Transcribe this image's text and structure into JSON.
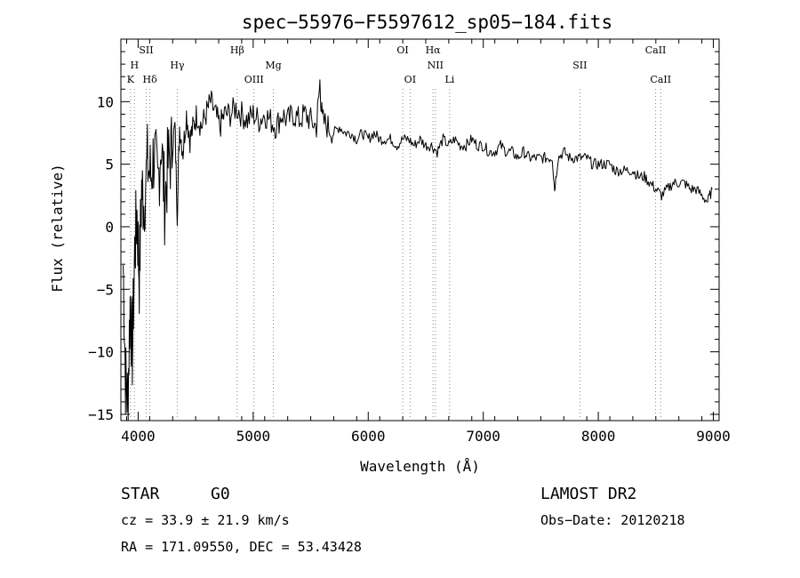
{
  "chart_data": {
    "type": "line",
    "title": "spec−55976−F5597612_sp05−184.fits",
    "xlabel": "Wavelength (Å)",
    "ylabel": "Flux (relative)",
    "xlim": [
      3850,
      9050
    ],
    "ylim": [
      -15.5,
      15
    ],
    "x_ticks": [
      4000,
      5000,
      6000,
      7000,
      8000,
      9000
    ],
    "x_tick_labels": [
      "4000",
      "5000",
      "6000",
      "7000",
      "8000",
      "9000"
    ],
    "y_ticks": [
      -15,
      -10,
      -5,
      0,
      5,
      10
    ],
    "y_tick_labels": [
      "−15",
      "−10",
      "−5",
      "0",
      "5",
      "10"
    ],
    "grid": false,
    "series": [
      {
        "name": "",
        "x": [
          3870,
          3890,
          3910,
          3930,
          3950,
          3970,
          3990,
          4010,
          4030,
          4050,
          4080,
          4110,
          4140,
          4170,
          4200,
          4230,
          4260,
          4290,
          4320,
          4340,
          4360,
          4390,
          4420,
          4450,
          4480,
          4510,
          4550,
          4590,
          4630,
          4670,
          4710,
          4750,
          4800,
          4850,
          4900,
          4950,
          5000,
          5050,
          5100,
          5150,
          5200,
          5250,
          5300,
          5350,
          5400,
          5450,
          5500,
          5550,
          5580,
          5600,
          5650,
          5700,
          5750,
          5800,
          5850,
          5900,
          5950,
          6000,
          6050,
          6100,
          6150,
          6200,
          6250,
          6300,
          6350,
          6400,
          6450,
          6500,
          6550,
          6600,
          6650,
          6700,
          6750,
          6800,
          6850,
          6900,
          6950,
          7000,
          7050,
          7100,
          7150,
          7200,
          7250,
          7300,
          7350,
          7400,
          7450,
          7500,
          7550,
          7600,
          7620,
          7650,
          7700,
          7750,
          7800,
          7850,
          7900,
          7950,
          8000,
          8050,
          8100,
          8150,
          8200,
          8250,
          8300,
          8350,
          8400,
          8450,
          8500,
          8550,
          8600,
          8650,
          8700,
          8750,
          8800,
          8850,
          8900,
          8950,
          8990
        ],
        "values": [
          -3,
          -12,
          -14,
          -6,
          -10,
          -2,
          1,
          -4,
          3,
          2,
          5,
          4,
          6,
          3,
          7,
          2,
          5,
          6,
          8,
          1,
          8,
          6,
          9,
          7,
          8,
          9,
          8,
          9,
          10,
          9,
          8,
          9,
          9,
          9.5,
          9,
          8.5,
          9,
          8.5,
          9,
          8.5,
          8,
          9,
          8.5,
          9,
          8.5,
          9,
          8.5,
          8,
          11.5,
          8.5,
          8,
          7.5,
          8,
          7.5,
          7.5,
          7,
          7.5,
          7,
          7.5,
          7,
          7,
          7,
          6.5,
          7,
          7,
          6.5,
          7,
          6.5,
          6.5,
          6,
          7,
          6.5,
          7,
          6.5,
          6.5,
          7,
          6.5,
          6.5,
          6,
          6,
          6.5,
          6,
          6,
          5.5,
          6,
          5.5,
          5.5,
          5.5,
          5.5,
          5.5,
          3,
          5.5,
          6,
          5.5,
          5.5,
          5.5,
          5.5,
          5,
          5,
          5,
          5,
          4.5,
          4.5,
          4.5,
          4.5,
          4,
          4,
          3.5,
          3,
          2.5,
          3,
          3.5,
          3.5,
          3.5,
          3,
          3,
          2.5,
          2,
          3
        ]
      }
    ],
    "line_markers": [
      {
        "label": "K",
        "x": 3934
      },
      {
        "label": "H",
        "x": 3968
      },
      {
        "label": "SII",
        "x": 4070
      },
      {
        "label": "Hδ",
        "x": 4102
      },
      {
        "label": "Hγ",
        "x": 4340
      },
      {
        "label": "Hβ",
        "x": 4861
      },
      {
        "label": "OIII",
        "x": 5007
      },
      {
        "label": "Mg",
        "x": 5175
      },
      {
        "label": "OI",
        "x": 6300
      },
      {
        "label": "OI",
        "x": 6364
      },
      {
        "label": "Hα",
        "x": 6563
      },
      {
        "label": "NII",
        "x": 6584
      },
      {
        "label": "Li",
        "x": 6708
      },
      {
        "label": "SII",
        "x": 7840
      },
      {
        "label": "CaII",
        "x": 8498
      },
      {
        "label": "CaII",
        "x": 8542
      }
    ]
  },
  "info": {
    "object_class": "STAR",
    "subclass": "G0",
    "redshift": "cz = 33.9 ± 21.9 km/s",
    "coords": "RA = 171.09550, DEC =  53.43428",
    "survey": "LAMOST DR2",
    "obs_date": "Obs−Date: 20120218"
  }
}
